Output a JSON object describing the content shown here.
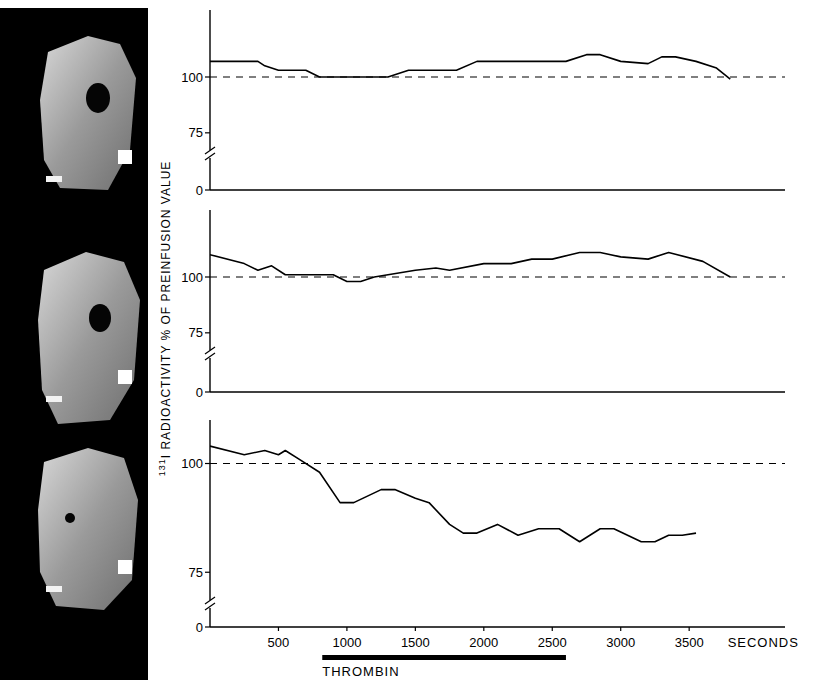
{
  "chart_data": [
    {
      "type": "line",
      "color": "#000000",
      "x": [
        0,
        350,
        400,
        500,
        700,
        800,
        1300,
        1450,
        1800,
        1950,
        2600,
        2750,
        2850,
        3000,
        3200,
        3300,
        3400,
        3550,
        3700,
        3800
      ],
      "values": [
        107,
        107,
        105,
        103,
        103,
        100,
        100,
        103,
        103,
        107,
        107,
        110,
        110,
        107,
        106,
        109,
        109,
        107,
        104,
        99
      ],
      "xlim": [
        0,
        4200
      ],
      "ylim": [
        0,
        130
      ],
      "ybreak": 70,
      "yticks": [
        0,
        75,
        100
      ],
      "reference_line": 100,
      "tick_labels": "y"
    },
    {
      "type": "line",
      "color": "#000000",
      "ylabel": "131I RADIOACTIVITY % OF PREINFUSION VALUE",
      "x": [
        0,
        250,
        350,
        450,
        550,
        900,
        1000,
        1100,
        1200,
        1300,
        1500,
        1650,
        1750,
        2000,
        2200,
        2350,
        2500,
        2700,
        2850,
        3000,
        3200,
        3350,
        3600,
        3800
      ],
      "values": [
        110,
        106,
        103,
        105,
        101,
        101,
        98,
        98,
        100,
        101,
        103,
        104,
        103,
        106,
        106,
        108,
        108,
        111,
        111,
        109,
        108,
        111,
        107,
        100
      ],
      "xlim": [
        0,
        4200
      ],
      "ylim": [
        0,
        130
      ],
      "ybreak": 70,
      "yticks": [
        0,
        75,
        100
      ],
      "reference_line": 100,
      "tick_labels": "y"
    },
    {
      "type": "line",
      "color": "#000000",
      "xlabel": "SECONDS",
      "x": [
        0,
        250,
        400,
        500,
        550,
        650,
        800,
        950,
        1050,
        1250,
        1350,
        1500,
        1600,
        1750,
        1850,
        1950,
        2100,
        2250,
        2400,
        2550,
        2700,
        2850,
        2950,
        3150,
        3250,
        3350,
        3450,
        3550
      ],
      "values": [
        104,
        102,
        103,
        102,
        103,
        101,
        98,
        91,
        91,
        94,
        94,
        92,
        91,
        86,
        84,
        84,
        86,
        83.5,
        85,
        85,
        82,
        85,
        85,
        82,
        82,
        83.5,
        83.5,
        84
      ],
      "xlim": [
        0,
        4200
      ],
      "ylim": [
        0,
        110
      ],
      "ybreak": 70,
      "yticks": [
        0,
        75,
        100
      ],
      "xticks": [
        500,
        1000,
        1500,
        2000,
        2500,
        3000,
        3500
      ],
      "reference_line": 100,
      "annotations": [
        {
          "text": "THROMBIN",
          "x": [
            820,
            2600
          ]
        }
      ]
    }
  ]
}
